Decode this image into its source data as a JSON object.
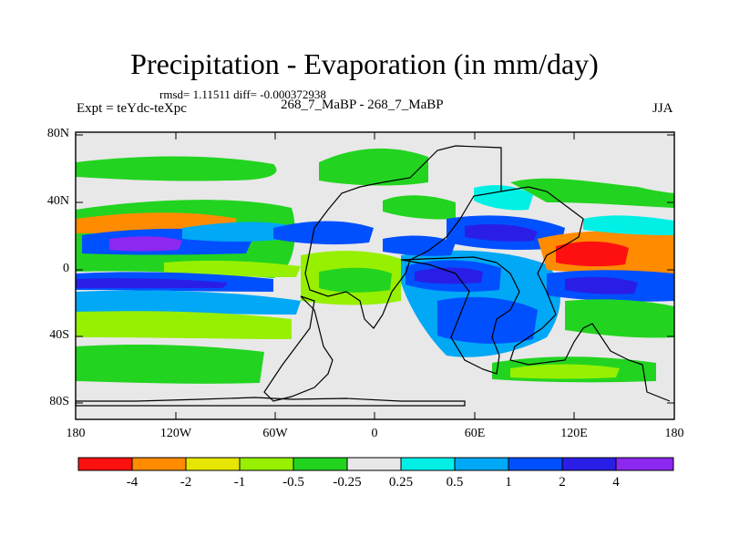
{
  "title": "Precipitation - Evaporation (in mm/day)",
  "stats": "rmsd= 1.11511 diff= -0.000372938",
  "experiment": "Expt = teYdc-teXpc",
  "runs": "268_7_MaBP - 268_7_MaBP",
  "season": "JJA",
  "axes": {
    "lat_labels": [
      "80N",
      "40N",
      "0",
      "40S",
      "80S"
    ],
    "lon_labels": [
      "180",
      "120W",
      "60W",
      "0",
      "60E",
      "120E",
      "180"
    ]
  },
  "colorbar": {
    "labels": [
      "-4",
      "-2",
      "-1",
      "-0.5",
      "-0.25",
      "0.25",
      "0.5",
      "1",
      "2",
      "4"
    ],
    "colors": [
      "#ff1010",
      "#ff8c00",
      "#e6e600",
      "#96f000",
      "#22d420",
      "#e8e8e8",
      "#00f0e6",
      "#00a8f5",
      "#0050ff",
      "#2a1ee6",
      "#8c28f0"
    ]
  }
}
